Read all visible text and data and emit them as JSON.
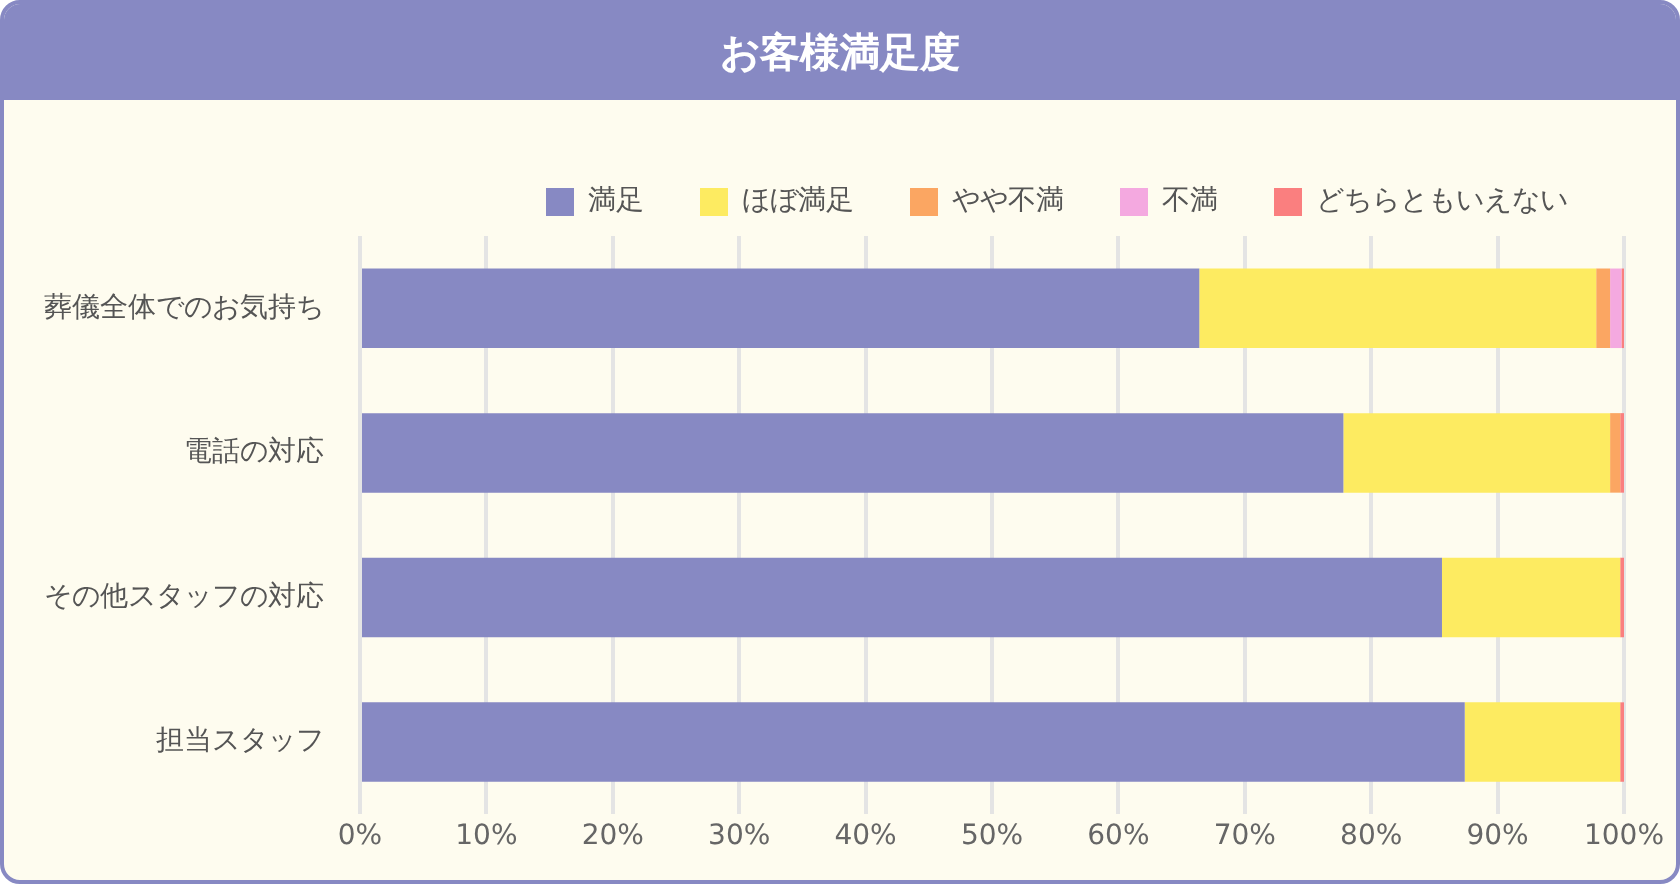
{
  "chart_data": {
    "type": "bar",
    "title": "お客様満足度",
    "orientation": "horizontal",
    "stacked": true,
    "categories": [
      "葬儀全体でのお気持ち",
      "電話の対応",
      "その他スタッフの対応",
      "担当スタッフ"
    ],
    "series": [
      {
        "name": "満足",
        "color": "#8789c3",
        "values": [
          66.4,
          77.8,
          85.6,
          87.4
        ]
      },
      {
        "name": "ほぼ満足",
        "color": "#fdeb61",
        "values": [
          31.4,
          21.1,
          14.1,
          12.3
        ]
      },
      {
        "name": "やや不満",
        "color": "#fba662",
        "values": [
          1.1,
          0.8,
          0,
          0
        ]
      },
      {
        "name": "不満",
        "color": "#f4a9e0",
        "values": [
          0.9,
          0,
          0,
          0
        ]
      },
      {
        "name": "どちらともいえない",
        "color": "#fa7f7f",
        "values": [
          0.2,
          0.3,
          0.3,
          0.3
        ]
      }
    ],
    "xlim": [
      0,
      100
    ],
    "xticks": [
      {
        "value": 0,
        "label": "0%"
      },
      {
        "value": 10,
        "label": "10%"
      },
      {
        "value": 20,
        "label": "20%"
      },
      {
        "value": 30,
        "label": "30%"
      },
      {
        "value": 40,
        "label": "40%"
      },
      {
        "value": 50,
        "label": "50%"
      },
      {
        "value": 60,
        "label": "60%"
      },
      {
        "value": 70,
        "label": "70%"
      },
      {
        "value": 80,
        "label": "80%"
      },
      {
        "value": 90,
        "label": "90%"
      },
      {
        "value": 100,
        "label": "100%"
      }
    ],
    "grid": "x",
    "legend": "top"
  }
}
